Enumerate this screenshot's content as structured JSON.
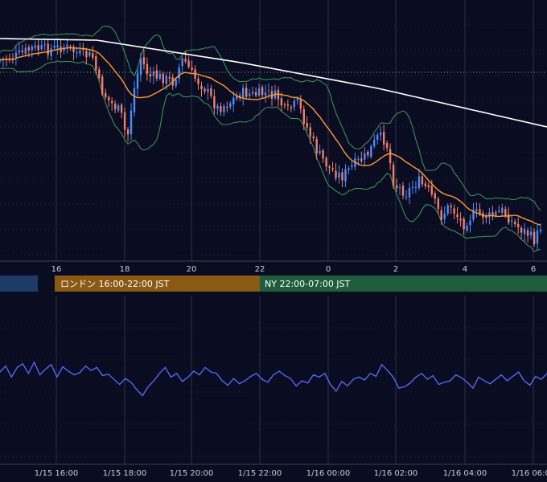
{
  "colors": {
    "background": "#0a0d22",
    "grid": "#2a2f45",
    "candle_up": "#4a8cff",
    "candle_down": "#f07f6a",
    "bollinger": "#3f9a5a",
    "ma_short": "#ff9a2e",
    "ma_long": "#ffffff",
    "oscillator": "#5a6bff",
    "session_asia": "#1d3b66",
    "session_london": "#8a5a12",
    "session_ny": "#1f5e3c"
  },
  "sessions": [
    {
      "name": "asia",
      "label": ""
    },
    {
      "name": "london",
      "label": "ロンドン 16:00-22:00 JST"
    },
    {
      "name": "ny",
      "label": "NY 22:00-07:00 JST"
    }
  ],
  "chart_data": [
    {
      "type": "candlestick",
      "title": "",
      "overlays": [
        "bollinger-bands",
        "moving-average-short",
        "moving-average-long"
      ],
      "x_ticks": [
        "16",
        "18",
        "20",
        "22",
        "0",
        "2",
        "4",
        "6"
      ],
      "grid": true,
      "reference_line": "dotted horizontal",
      "trend": "decline from ~1/15 17:00 to ~1/16 06:30"
    },
    {
      "type": "line",
      "title": "",
      "series": [
        {
          "values": [
            0.62,
            0.7,
            0.55,
            0.68,
            0.73,
            0.6,
            0.75,
            0.58,
            0.66,
            0.72,
            0.55,
            0.69,
            0.63,
            0.58,
            0.61,
            0.7,
            0.64,
            0.68,
            0.57,
            0.59,
            0.52,
            0.45,
            0.53,
            0.48,
            0.38,
            0.3,
            0.42,
            0.5,
            0.6,
            0.68,
            0.55,
            0.6,
            0.49,
            0.55,
            0.63,
            0.58,
            0.68,
            0.62,
            0.6,
            0.5,
            0.44,
            0.53,
            0.46,
            0.5,
            0.56,
            0.6,
            0.52,
            0.48,
            0.58,
            0.63,
            0.57,
            0.53,
            0.43,
            0.5,
            0.47,
            0.58,
            0.55,
            0.6,
            0.45,
            0.36,
            0.49,
            0.43,
            0.52,
            0.55,
            0.51,
            0.6,
            0.56,
            0.72,
            0.64,
            0.55,
            0.4,
            0.42,
            0.47,
            0.55,
            0.6,
            0.52,
            0.57,
            0.45,
            0.48,
            0.5,
            0.58,
            0.54,
            0.48,
            0.4,
            0.55,
            0.5,
            0.46,
            0.52,
            0.58,
            0.5,
            0.56,
            0.62,
            0.5,
            0.44,
            0.56,
            0.52,
            0.6
          ]
        }
      ],
      "x_ticks": [
        "1/15 16:00",
        "1/15 18:00",
        "1/15 20:00",
        "1/15 22:00",
        "1/16 00:00",
        "1/16 02:00",
        "1/16 04:00",
        "1/16 06:00"
      ],
      "grid": true
    }
  ]
}
